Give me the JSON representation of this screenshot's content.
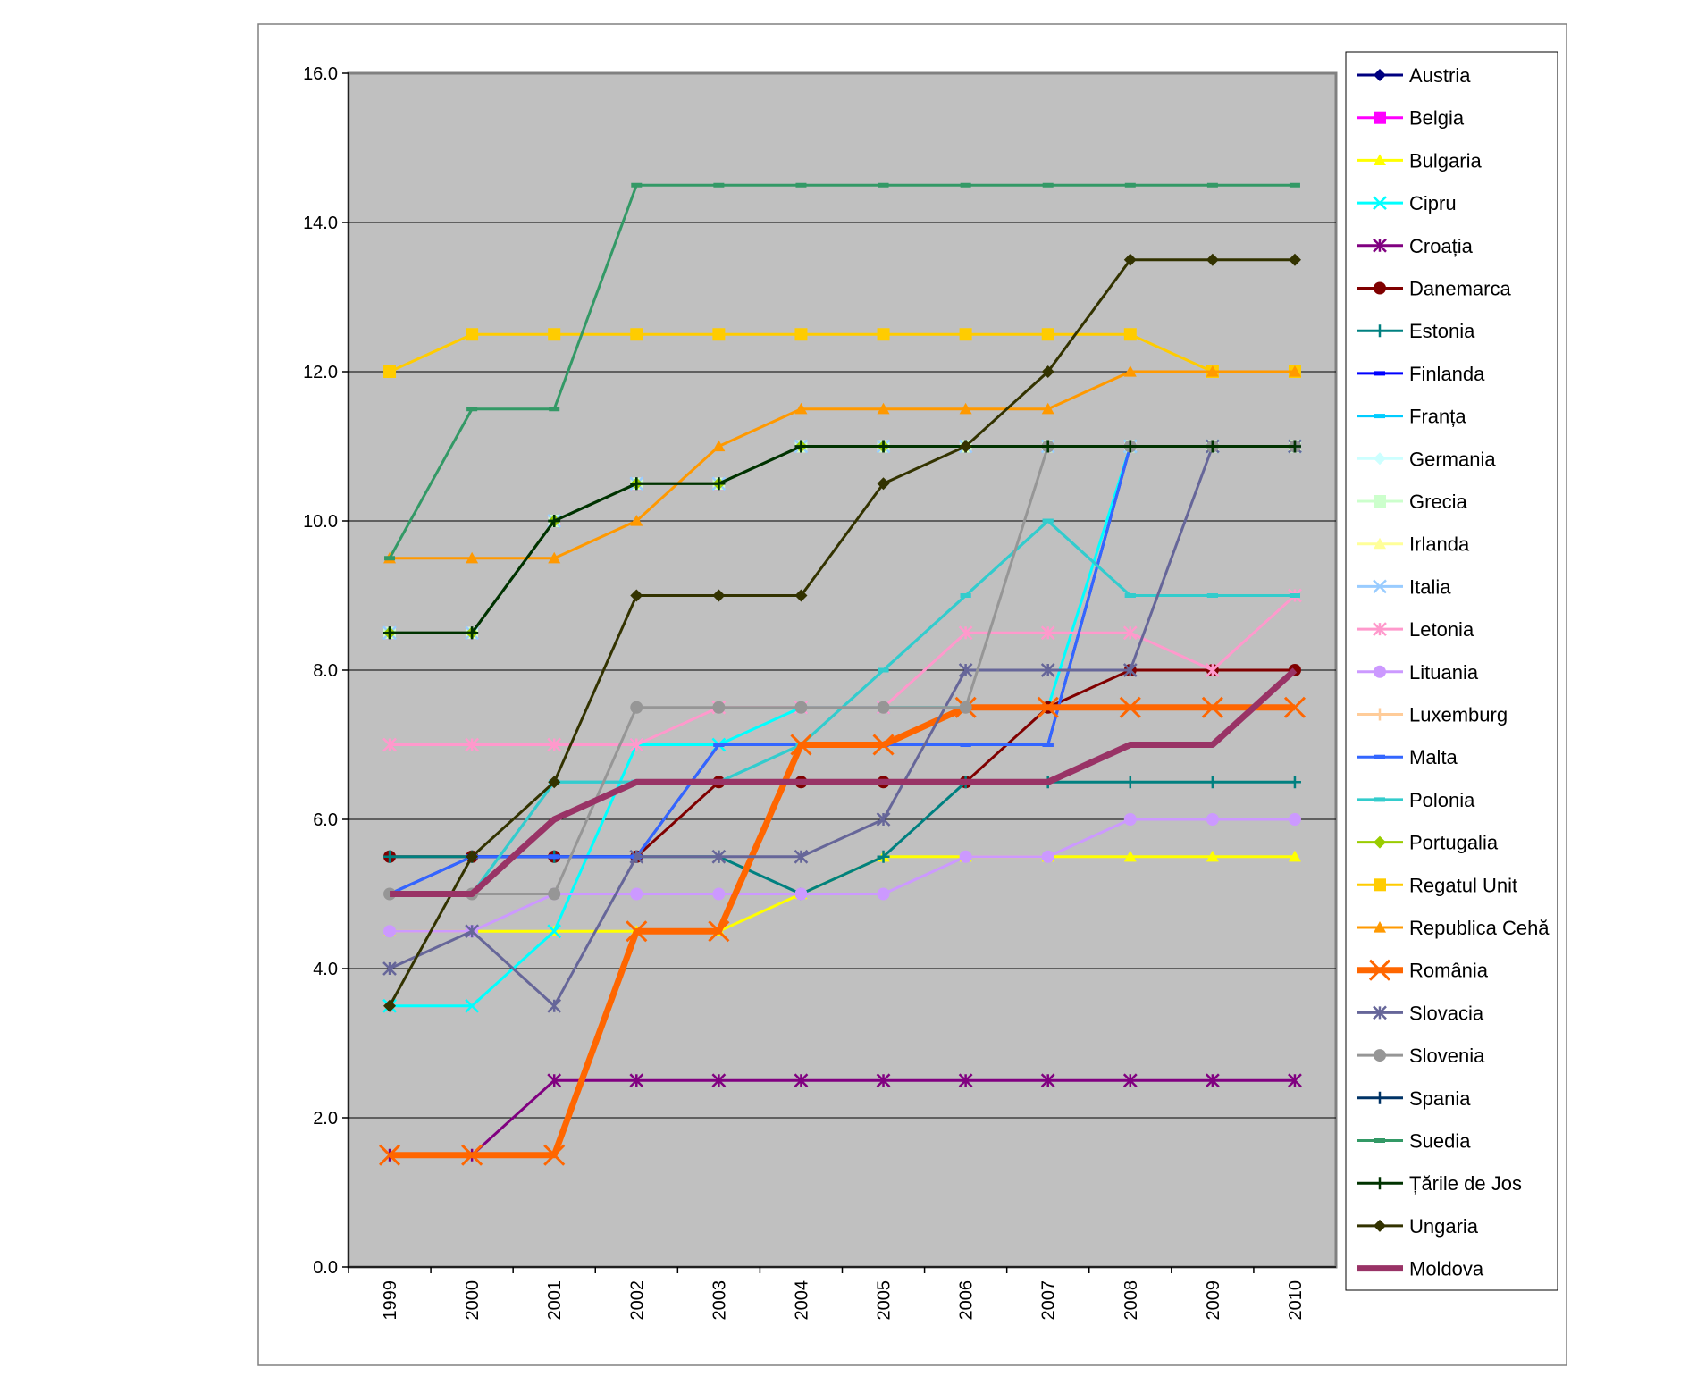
{
  "chart_data": {
    "type": "line",
    "title": "",
    "xlabel": "",
    "ylabel": "",
    "ylim": [
      0,
      16
    ],
    "y_ticks": [
      "0.0",
      "2.0",
      "4.0",
      "6.0",
      "8.0",
      "10.0",
      "12.0",
      "14.0",
      "16.0"
    ],
    "grid": true,
    "legend_position": "right",
    "categories": [
      "1999",
      "2000",
      "2001",
      "2002",
      "2003",
      "2004",
      "2005",
      "2006",
      "2007",
      "2008",
      "2009",
      "2010"
    ],
    "series": [
      {
        "name": "Austria",
        "color": "#000080",
        "marker": "diamond",
        "values": [
          8.5,
          8.5,
          10,
          10.5,
          10.5,
          11,
          11,
          11,
          11,
          11,
          11,
          11
        ]
      },
      {
        "name": "Belgia",
        "color": "#FF00FF",
        "marker": "square",
        "values": [
          8.5,
          8.5,
          10,
          10.5,
          10.5,
          11,
          11,
          11,
          11,
          11,
          11,
          11
        ]
      },
      {
        "name": "Bulgaria",
        "color": "#FFFF00",
        "marker": "triangle",
        "values": [
          4.5,
          4.5,
          4.5,
          4.5,
          4.5,
          5,
          5.5,
          5.5,
          5.5,
          5.5,
          5.5,
          5.5
        ]
      },
      {
        "name": "Cipru",
        "color": "#00FFFF",
        "marker": "x",
        "values": [
          3.5,
          3.5,
          4.5,
          7,
          7,
          7.5,
          7.5,
          7.5,
          7.5,
          11,
          11,
          11
        ]
      },
      {
        "name": "Croația",
        "color": "#800080",
        "marker": "star",
        "values": [
          1.5,
          1.5,
          2.5,
          2.5,
          2.5,
          2.5,
          2.5,
          2.5,
          2.5,
          2.5,
          2.5,
          2.5
        ]
      },
      {
        "name": "Danemarca",
        "color": "#800000",
        "marker": "circle",
        "values": [
          5.5,
          5.5,
          5.5,
          5.5,
          6.5,
          6.5,
          6.5,
          6.5,
          7.5,
          8,
          8,
          8
        ]
      },
      {
        "name": "Estonia",
        "color": "#008080",
        "marker": "plus",
        "values": [
          5.5,
          5.5,
          5.5,
          5.5,
          5.5,
          5,
          5.5,
          6.5,
          6.5,
          6.5,
          6.5,
          6.5
        ]
      },
      {
        "name": "Finlanda",
        "color": "#0000FF",
        "marker": "dash",
        "values": [
          5,
          5.5,
          5.5,
          5.5,
          7,
          7,
          7,
          7,
          7,
          11,
          11,
          11
        ]
      },
      {
        "name": "Franța",
        "color": "#00CCFF",
        "marker": "dash",
        "values": [
          5,
          5,
          6.5,
          6.5,
          6.5,
          7,
          8,
          9,
          10,
          9,
          9,
          9
        ]
      },
      {
        "name": "Germania",
        "color": "#CCFFFF",
        "marker": "diamond",
        "values": [
          8.5,
          8.5,
          10,
          10.5,
          10.5,
          11,
          11,
          11,
          11,
          11,
          11,
          11
        ]
      },
      {
        "name": "Grecia",
        "color": "#CCFFCC",
        "marker": "square",
        "values": [
          8.5,
          8.5,
          10,
          10.5,
          10.5,
          11,
          11,
          11,
          11,
          11,
          11,
          11
        ]
      },
      {
        "name": "Irlanda",
        "color": "#FFFF99",
        "marker": "triangle",
        "values": [
          8.5,
          8.5,
          10,
          10.5,
          10.5,
          11,
          11,
          11,
          11,
          11,
          11,
          11
        ]
      },
      {
        "name": "Italia",
        "color": "#99CCFF",
        "marker": "x",
        "values": [
          8.5,
          8.5,
          10,
          10.5,
          10.5,
          11,
          11,
          11,
          11,
          11,
          11,
          11
        ]
      },
      {
        "name": "Letonia",
        "color": "#FF99CC",
        "marker": "star",
        "values": [
          7,
          7,
          7,
          7,
          7.5,
          7.5,
          7.5,
          8.5,
          8.5,
          8.5,
          8,
          9
        ]
      },
      {
        "name": "Lituania",
        "color": "#CC99FF",
        "marker": "circle",
        "values": [
          4.5,
          4.5,
          5,
          5,
          5,
          5,
          5,
          5.5,
          5.5,
          6,
          6,
          6
        ]
      },
      {
        "name": "Luxemburg",
        "color": "#FFCC99",
        "marker": "plus",
        "values": [
          8.5,
          8.5,
          10,
          10.5,
          10.5,
          11,
          11,
          11,
          11,
          11,
          11,
          11
        ]
      },
      {
        "name": "Malta",
        "color": "#3366FF",
        "marker": "dash",
        "values": [
          5,
          5.5,
          5.5,
          5.5,
          7,
          7,
          7,
          7,
          7,
          11,
          11,
          11
        ]
      },
      {
        "name": "Polonia",
        "color": "#33CCCC",
        "marker": "dash",
        "values": [
          5,
          5,
          6.5,
          6.5,
          6.5,
          7,
          8,
          9,
          10,
          9,
          9,
          9
        ]
      },
      {
        "name": "Portugalia",
        "color": "#99CC00",
        "marker": "diamond",
        "values": [
          8.5,
          8.5,
          10,
          10.5,
          10.5,
          11,
          11,
          11,
          11,
          11,
          11,
          11
        ]
      },
      {
        "name": "Regatul Unit",
        "color": "#FFCC00",
        "marker": "square",
        "values": [
          12,
          12.5,
          12.5,
          12.5,
          12.5,
          12.5,
          12.5,
          12.5,
          12.5,
          12.5,
          12,
          12
        ]
      },
      {
        "name": "Republica Cehă",
        "color": "#FF9900",
        "marker": "triangle",
        "values": [
          9.5,
          9.5,
          9.5,
          10,
          11,
          11.5,
          11.5,
          11.5,
          11.5,
          12,
          12,
          12
        ]
      },
      {
        "name": "România",
        "color": "#FF6600",
        "marker": "x",
        "thick": true,
        "values": [
          1.5,
          1.5,
          1.5,
          4.5,
          4.5,
          7,
          7,
          7.5,
          7.5,
          7.5,
          7.5,
          7.5
        ]
      },
      {
        "name": "Slovacia",
        "color": "#666699",
        "marker": "star",
        "values": [
          4,
          4.5,
          3.5,
          5.5,
          5.5,
          5.5,
          6,
          8,
          8,
          8,
          11,
          11
        ]
      },
      {
        "name": "Slovenia",
        "color": "#969696",
        "marker": "circle",
        "values": [
          5,
          5,
          5,
          7.5,
          7.5,
          7.5,
          7.5,
          7.5,
          11,
          11,
          11,
          11
        ]
      },
      {
        "name": "Spania",
        "color": "#003366",
        "marker": "plus",
        "values": [
          8.5,
          8.5,
          10,
          10.5,
          10.5,
          11,
          11,
          11,
          11,
          11,
          11,
          11
        ]
      },
      {
        "name": "Suedia",
        "color": "#339966",
        "marker": "dash",
        "values": [
          9.5,
          11.5,
          11.5,
          14.5,
          14.5,
          14.5,
          14.5,
          14.5,
          14.5,
          14.5,
          14.5,
          14.5
        ]
      },
      {
        "name": "Țările de Jos",
        "color": "#003300",
        "marker": "plus",
        "values": [
          8.5,
          8.5,
          10,
          10.5,
          10.5,
          11,
          11,
          11,
          11,
          11,
          11,
          11
        ]
      },
      {
        "name": "Ungaria",
        "color": "#333300",
        "marker": "diamond",
        "values": [
          3.5,
          5.5,
          6.5,
          9,
          9,
          9,
          10.5,
          11,
          12,
          13.5,
          13.5,
          13.5
        ]
      },
      {
        "name": "Moldova",
        "color": "#993366",
        "marker": "none",
        "thick": true,
        "values": [
          5,
          5,
          6,
          6.5,
          6.5,
          6.5,
          6.5,
          6.5,
          6.5,
          7,
          7,
          8
        ]
      }
    ]
  }
}
